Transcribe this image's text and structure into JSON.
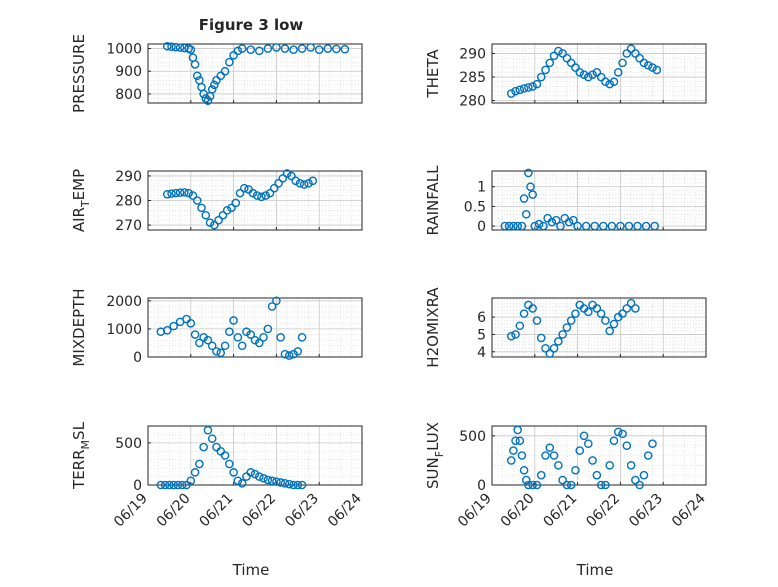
{
  "figure": {
    "title": "Figure 3 low",
    "marker_color": "#0072BD",
    "x_ticks": [
      "06/19",
      "06/20",
      "06/21",
      "06/22",
      "06/23",
      "06/24"
    ],
    "x_label": "Time"
  },
  "chart_data": [
    {
      "type": "scatter",
      "ylabel_main": "PRESSURE",
      "ylabel_sub": "",
      "ylim": [
        760,
        1020
      ],
      "yticks": [
        800,
        900,
        1000
      ],
      "grid": true,
      "x_range_days": [
        0,
        5
      ],
      "points": [
        [
          0.45,
          1010
        ],
        [
          0.55,
          1008
        ],
        [
          0.65,
          1006
        ],
        [
          0.75,
          1004
        ],
        [
          0.85,
          1002
        ],
        [
          0.95,
          1000
        ],
        [
          1.0,
          995
        ],
        [
          1.05,
          960
        ],
        [
          1.1,
          930
        ],
        [
          1.15,
          880
        ],
        [
          1.2,
          860
        ],
        [
          1.25,
          830
        ],
        [
          1.3,
          800
        ],
        [
          1.35,
          780
        ],
        [
          1.4,
          770
        ],
        [
          1.45,
          790
        ],
        [
          1.5,
          820
        ],
        [
          1.55,
          840
        ],
        [
          1.6,
          860
        ],
        [
          1.7,
          880
        ],
        [
          1.8,
          900
        ],
        [
          1.9,
          940
        ],
        [
          2.0,
          970
        ],
        [
          2.1,
          990
        ],
        [
          2.2,
          1000
        ],
        [
          2.4,
          995
        ],
        [
          2.6,
          990
        ],
        [
          2.8,
          1000
        ],
        [
          3.0,
          1005
        ],
        [
          3.2,
          1000
        ],
        [
          3.4,
          995
        ],
        [
          3.6,
          1000
        ],
        [
          3.8,
          1005
        ],
        [
          4.0,
          995
        ],
        [
          4.2,
          1000
        ],
        [
          4.4,
          998
        ],
        [
          4.6,
          997
        ]
      ]
    },
    {
      "type": "scatter",
      "ylabel_main": "THETA",
      "ylabel_sub": "",
      "ylim": [
        279.5,
        292
      ],
      "yticks": [
        280,
        285,
        290
      ],
      "grid": true,
      "x_range_days": [
        0,
        5
      ],
      "points": [
        [
          0.45,
          281.5
        ],
        [
          0.55,
          282
        ],
        [
          0.65,
          282.3
        ],
        [
          0.75,
          282.6
        ],
        [
          0.85,
          282.8
        ],
        [
          0.95,
          283
        ],
        [
          1.05,
          283.5
        ],
        [
          1.15,
          285
        ],
        [
          1.25,
          286.5
        ],
        [
          1.35,
          288
        ],
        [
          1.45,
          289.5
        ],
        [
          1.55,
          290.5
        ],
        [
          1.65,
          290
        ],
        [
          1.75,
          289
        ],
        [
          1.85,
          288
        ],
        [
          1.95,
          287
        ],
        [
          2.05,
          286
        ],
        [
          2.15,
          285.5
        ],
        [
          2.25,
          285
        ],
        [
          2.35,
          285.5
        ],
        [
          2.45,
          286
        ],
        [
          2.55,
          285
        ],
        [
          2.65,
          284
        ],
        [
          2.75,
          283.5
        ],
        [
          2.85,
          284
        ],
        [
          2.95,
          286
        ],
        [
          3.05,
          288
        ],
        [
          3.15,
          290
        ],
        [
          3.25,
          291
        ],
        [
          3.35,
          290
        ],
        [
          3.45,
          289
        ],
        [
          3.55,
          288
        ],
        [
          3.65,
          287.5
        ],
        [
          3.75,
          287
        ],
        [
          3.85,
          286.5
        ]
      ]
    },
    {
      "type": "scatter",
      "ylabel_main": "AIR",
      "ylabel_sub": "T",
      "ylabel_tail": "EMP",
      "ylim": [
        268,
        292
      ],
      "yticks": [
        270,
        280,
        290
      ],
      "grid": true,
      "x_range_days": [
        0,
        5
      ],
      "points": [
        [
          0.45,
          282.5
        ],
        [
          0.55,
          282.8
        ],
        [
          0.65,
          283
        ],
        [
          0.75,
          283.2
        ],
        [
          0.85,
          283.3
        ],
        [
          0.95,
          283
        ],
        [
          1.05,
          282
        ],
        [
          1.15,
          280
        ],
        [
          1.25,
          277
        ],
        [
          1.35,
          274
        ],
        [
          1.45,
          271
        ],
        [
          1.55,
          270
        ],
        [
          1.65,
          272
        ],
        [
          1.75,
          274
        ],
        [
          1.85,
          276
        ],
        [
          1.95,
          277
        ],
        [
          2.05,
          279
        ],
        [
          2.15,
          283
        ],
        [
          2.25,
          285
        ],
        [
          2.35,
          284.5
        ],
        [
          2.45,
          283
        ],
        [
          2.55,
          282
        ],
        [
          2.65,
          281.5
        ],
        [
          2.75,
          282
        ],
        [
          2.85,
          283
        ],
        [
          2.95,
          285
        ],
        [
          3.05,
          287
        ],
        [
          3.15,
          289
        ],
        [
          3.25,
          291
        ],
        [
          3.35,
          290
        ],
        [
          3.45,
          288
        ],
        [
          3.55,
          287
        ],
        [
          3.65,
          286.5
        ],
        [
          3.75,
          287
        ],
        [
          3.85,
          288
        ]
      ]
    },
    {
      "type": "scatter",
      "ylabel_main": "RAINFALL",
      "ylabel_sub": "",
      "ylim": [
        -0.1,
        1.4
      ],
      "yticks": [
        0,
        0.5,
        1
      ],
      "grid": true,
      "x_range_days": [
        0,
        5
      ],
      "points": [
        [
          0.3,
          0
        ],
        [
          0.4,
          0
        ],
        [
          0.5,
          0
        ],
        [
          0.6,
          0
        ],
        [
          0.7,
          0
        ],
        [
          0.75,
          0.7
        ],
        [
          0.8,
          0.3
        ],
        [
          0.85,
          1.35
        ],
        [
          0.9,
          1.0
        ],
        [
          0.95,
          0.8
        ],
        [
          1.0,
          0
        ],
        [
          1.1,
          0.05
        ],
        [
          1.2,
          0
        ],
        [
          1.3,
          0.2
        ],
        [
          1.4,
          0.1
        ],
        [
          1.5,
          0.15
        ],
        [
          1.6,
          0
        ],
        [
          1.7,
          0.2
        ],
        [
          1.8,
          0.1
        ],
        [
          1.9,
          0.15
        ],
        [
          2.0,
          0
        ],
        [
          2.2,
          0
        ],
        [
          2.4,
          0
        ],
        [
          2.6,
          0
        ],
        [
          2.8,
          0
        ],
        [
          3.0,
          0
        ],
        [
          3.2,
          0
        ],
        [
          3.4,
          0
        ],
        [
          3.6,
          0
        ],
        [
          3.8,
          0
        ]
      ]
    },
    {
      "type": "scatter",
      "ylabel_main": "MIXDEPTH",
      "ylabel_sub": "",
      "ylim": [
        0,
        2100
      ],
      "yticks": [
        0,
        1000,
        2000
      ],
      "grid": true,
      "x_range_days": [
        0,
        5
      ],
      "points": [
        [
          0.3,
          900
        ],
        [
          0.45,
          950
        ],
        [
          0.6,
          1100
        ],
        [
          0.75,
          1250
        ],
        [
          0.9,
          1350
        ],
        [
          1.0,
          1200
        ],
        [
          1.1,
          800
        ],
        [
          1.2,
          500
        ],
        [
          1.3,
          700
        ],
        [
          1.4,
          600
        ],
        [
          1.5,
          400
        ],
        [
          1.6,
          200
        ],
        [
          1.7,
          150
        ],
        [
          1.8,
          400
        ],
        [
          1.9,
          900
        ],
        [
          2.0,
          1300
        ],
        [
          2.1,
          700
        ],
        [
          2.2,
          400
        ],
        [
          2.3,
          900
        ],
        [
          2.4,
          800
        ],
        [
          2.5,
          600
        ],
        [
          2.6,
          500
        ],
        [
          2.7,
          700
        ],
        [
          2.8,
          1000
        ],
        [
          2.9,
          1800
        ],
        [
          3.0,
          2000
        ],
        [
          3.1,
          700
        ],
        [
          3.2,
          100
        ],
        [
          3.3,
          50
        ],
        [
          3.4,
          100
        ],
        [
          3.5,
          200
        ],
        [
          3.6,
          700
        ]
      ]
    },
    {
      "type": "scatter",
      "ylabel_main": "H2OMIXRA",
      "ylabel_sub": "",
      "ylim": [
        3.7,
        7.1
      ],
      "yticks": [
        4,
        5,
        6
      ],
      "grid": true,
      "x_range_days": [
        0,
        5
      ],
      "points": [
        [
          0.45,
          4.9
        ],
        [
          0.55,
          5.0
        ],
        [
          0.65,
          5.5
        ],
        [
          0.75,
          6.2
        ],
        [
          0.85,
          6.7
        ],
        [
          0.95,
          6.5
        ],
        [
          1.05,
          5.8
        ],
        [
          1.15,
          4.8
        ],
        [
          1.25,
          4.2
        ],
        [
          1.35,
          3.9
        ],
        [
          1.45,
          4.2
        ],
        [
          1.55,
          4.6
        ],
        [
          1.65,
          5.0
        ],
        [
          1.75,
          5.4
        ],
        [
          1.85,
          5.8
        ],
        [
          1.95,
          6.2
        ],
        [
          2.05,
          6.7
        ],
        [
          2.15,
          6.5
        ],
        [
          2.25,
          6.3
        ],
        [
          2.35,
          6.7
        ],
        [
          2.45,
          6.5
        ],
        [
          2.55,
          6.2
        ],
        [
          2.65,
          5.8
        ],
        [
          2.75,
          5.2
        ],
        [
          2.85,
          5.6
        ],
        [
          2.95,
          6.0
        ],
        [
          3.05,
          6.2
        ],
        [
          3.15,
          6.5
        ],
        [
          3.25,
          6.8
        ],
        [
          3.35,
          6.5
        ]
      ]
    },
    {
      "type": "scatter",
      "ylabel_main": "TERR",
      "ylabel_sub": "M",
      "ylabel_tail": "SL",
      "ylim": [
        0,
        700
      ],
      "yticks": [
        0,
        500
      ],
      "grid": true,
      "x_range_days": [
        0,
        5
      ],
      "points": [
        [
          0.3,
          0
        ],
        [
          0.4,
          0
        ],
        [
          0.5,
          0
        ],
        [
          0.6,
          0
        ],
        [
          0.7,
          0
        ],
        [
          0.8,
          0
        ],
        [
          0.9,
          0
        ],
        [
          1.0,
          50
        ],
        [
          1.1,
          150
        ],
        [
          1.2,
          250
        ],
        [
          1.3,
          450
        ],
        [
          1.4,
          650
        ],
        [
          1.5,
          550
        ],
        [
          1.6,
          450
        ],
        [
          1.7,
          400
        ],
        [
          1.8,
          350
        ],
        [
          1.9,
          250
        ],
        [
          2.0,
          150
        ],
        [
          2.1,
          50
        ],
        [
          2.2,
          20
        ],
        [
          2.3,
          100
        ],
        [
          2.4,
          150
        ],
        [
          2.5,
          130
        ],
        [
          2.6,
          100
        ],
        [
          2.7,
          80
        ],
        [
          2.8,
          60
        ],
        [
          2.9,
          50
        ],
        [
          3.0,
          40
        ],
        [
          3.1,
          30
        ],
        [
          3.2,
          20
        ],
        [
          3.3,
          10
        ],
        [
          3.4,
          0
        ],
        [
          3.5,
          0
        ],
        [
          3.6,
          0
        ]
      ]
    },
    {
      "type": "scatter",
      "ylabel_main": "SUN",
      "ylabel_sub": "F",
      "ylabel_tail": "LUX",
      "ylim": [
        0,
        600
      ],
      "yticks": [
        0,
        500
      ],
      "grid": true,
      "x_range_days": [
        0,
        5
      ],
      "points": [
        [
          0.45,
          250
        ],
        [
          0.5,
          350
        ],
        [
          0.55,
          450
        ],
        [
          0.6,
          560
        ],
        [
          0.65,
          450
        ],
        [
          0.7,
          300
        ],
        [
          0.75,
          150
        ],
        [
          0.8,
          50
        ],
        [
          0.85,
          0
        ],
        [
          0.95,
          0
        ],
        [
          1.05,
          0
        ],
        [
          1.15,
          100
        ],
        [
          1.25,
          300
        ],
        [
          1.35,
          380
        ],
        [
          1.45,
          300
        ],
        [
          1.55,
          200
        ],
        [
          1.65,
          50
        ],
        [
          1.75,
          0
        ],
        [
          1.85,
          0
        ],
        [
          1.95,
          150
        ],
        [
          2.05,
          350
        ],
        [
          2.15,
          500
        ],
        [
          2.25,
          420
        ],
        [
          2.35,
          250
        ],
        [
          2.45,
          100
        ],
        [
          2.55,
          0
        ],
        [
          2.65,
          0
        ],
        [
          2.75,
          200
        ],
        [
          2.85,
          450
        ],
        [
          2.95,
          540
        ],
        [
          3.05,
          520
        ],
        [
          3.15,
          400
        ],
        [
          3.25,
          200
        ],
        [
          3.35,
          50
        ],
        [
          3.45,
          0
        ],
        [
          3.55,
          100
        ],
        [
          3.65,
          300
        ],
        [
          3.75,
          420
        ]
      ]
    }
  ]
}
